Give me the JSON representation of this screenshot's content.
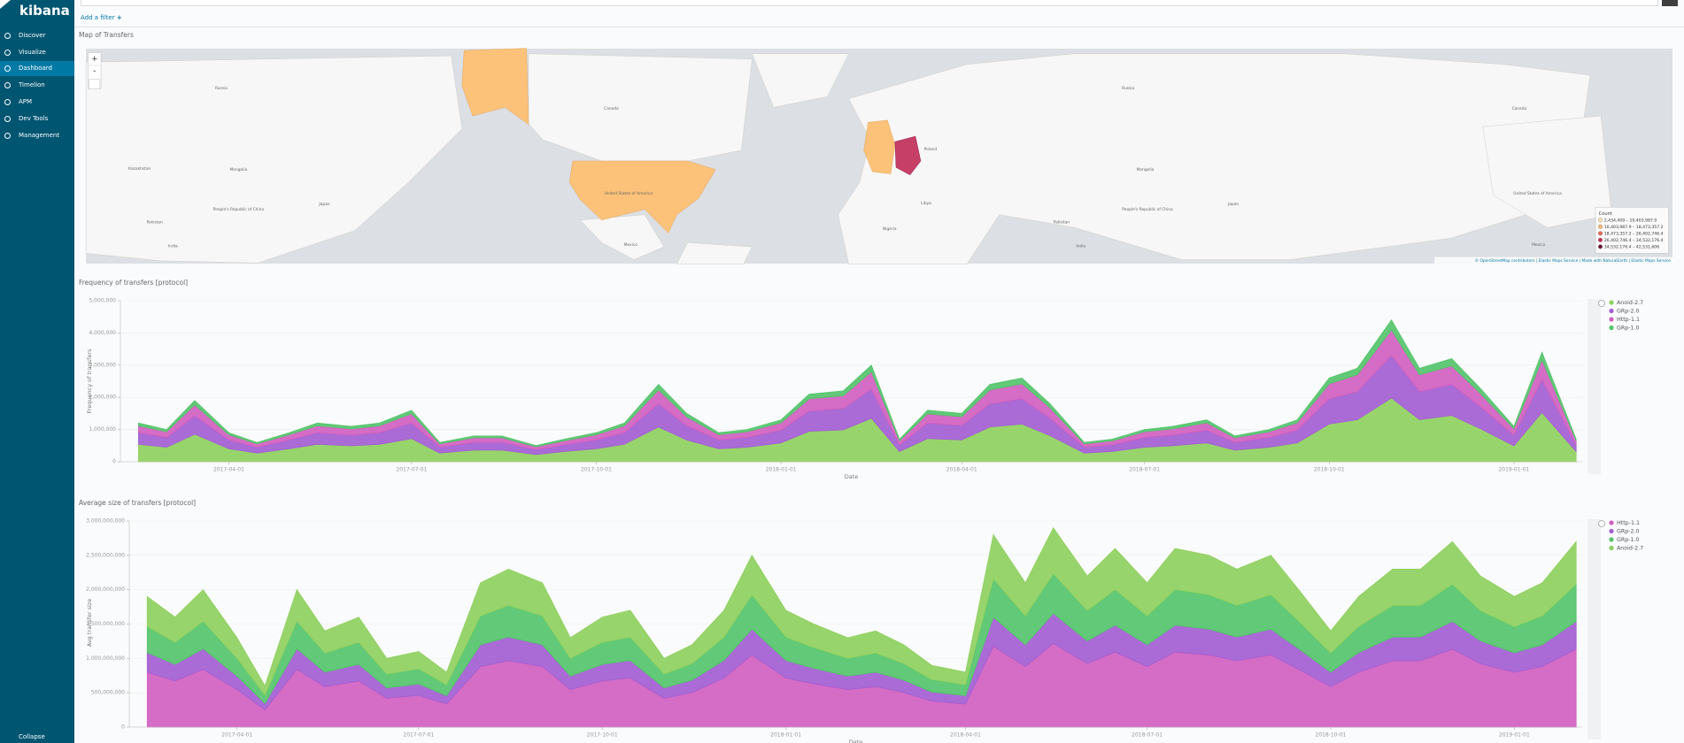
{
  "sidebar": {
    "brand": "kibana",
    "items": [
      "Discover",
      "Visualize",
      "Dashboard",
      "Timelion",
      "APM",
      "Dev Tools",
      "Management"
    ],
    "active": 2,
    "collapse": "Collapse"
  },
  "filter_bar": {
    "add_filter": "Add a filter"
  },
  "map_panel": {
    "title": "Map of Transfers",
    "zoom_in": "+",
    "zoom_out": "-",
    "labels": [
      {
        "text": "Russia",
        "x": 206,
        "y": 82
      },
      {
        "text": "Canada",
        "x": 569,
        "y": 101
      },
      {
        "text": "United States of America",
        "x": 585,
        "y": 180
      },
      {
        "text": "Mongolia",
        "x": 222,
        "y": 158
      },
      {
        "text": "Kazakhstan",
        "x": 130,
        "y": 157
      },
      {
        "text": "People's Republic of China",
        "x": 222,
        "y": 195
      },
      {
        "text": "Pakistan",
        "x": 144,
        "y": 207
      },
      {
        "text": "India",
        "x": 161,
        "y": 229
      },
      {
        "text": "Japan",
        "x": 302,
        "y": 190
      },
      {
        "text": "Mexico",
        "x": 587,
        "y": 228
      },
      {
        "text": "Poland",
        "x": 866,
        "y": 139
      },
      {
        "text": "Libya",
        "x": 862,
        "y": 189
      },
      {
        "text": "Nigeria",
        "x": 828,
        "y": 213
      },
      {
        "text": "Russia",
        "x": 1050,
        "y": 82
      },
      {
        "text": "Mongolia",
        "x": 1066,
        "y": 158
      },
      {
        "text": "People's Republic of China",
        "x": 1068,
        "y": 195
      },
      {
        "text": "Pakistan",
        "x": 988,
        "y": 207
      },
      {
        "text": "India",
        "x": 1006,
        "y": 229
      },
      {
        "text": "Japan",
        "x": 1148,
        "y": 190
      },
      {
        "text": "Canada",
        "x": 1414,
        "y": 101
      },
      {
        "text": "United States of America",
        "x": 1431,
        "y": 180
      },
      {
        "text": "Mexico",
        "x": 1432,
        "y": 228
      }
    ],
    "legend": {
      "title": "Count",
      "items": [
        {
          "label": "2,434,409 – 10,403,987.9",
          "color": "#fde3b1"
        },
        {
          "label": "10,403,987.9 – 18,473,357.2",
          "color": "#f9b46a"
        },
        {
          "label": "18,473,357.2 – 26,402,746.4",
          "color": "#e8664b"
        },
        {
          "label": "26,402,746.4 – 34,532,176.4",
          "color": "#c42a52"
        },
        {
          "label": "34,532,176.4 – 42,531,606",
          "color": "#6e1233"
        }
      ]
    },
    "attribution": "© OpenStreetMap contributors | Elastic Maps Service | Made with NaturalEarth | Elastic Maps Service"
  },
  "charts": [
    {
      "type": "area",
      "stacked": true,
      "title": "Frequency of transfers [protocol]",
      "x_label": "Date",
      "y_label": "Frequency of transfers",
      "x": [
        "2017-02-15",
        "2017-03-01",
        "2017-03-15",
        "2017-04-01",
        "2017-04-15",
        "2017-05-01",
        "2017-05-15",
        "2017-06-01",
        "2017-06-15",
        "2017-07-01",
        "2017-07-15",
        "2017-08-01",
        "2017-08-15",
        "2017-09-01",
        "2017-09-15",
        "2017-10-01",
        "2017-10-15",
        "2017-11-01",
        "2017-11-15",
        "2017-12-01",
        "2017-12-15",
        "2018-01-01",
        "2018-01-15",
        "2018-02-01",
        "2018-02-15",
        "2018-03-01",
        "2018-03-15",
        "2018-04-01",
        "2018-04-15",
        "2018-05-01",
        "2018-05-15",
        "2018-06-01",
        "2018-06-15",
        "2018-07-01",
        "2018-07-15",
        "2018-08-01",
        "2018-08-15",
        "2018-09-01",
        "2018-09-15",
        "2018-10-01",
        "2018-10-15",
        "2018-11-01",
        "2018-11-15",
        "2018-12-01",
        "2018-12-15",
        "2019-01-01",
        "2019-01-15",
        "2019-02-01"
      ],
      "xlim": [
        "2017-02-06",
        "2019-02-04"
      ],
      "xticks": [
        "2017-04-01",
        "2017-07-01",
        "2017-10-01",
        "2018-01-01",
        "2018-04-01",
        "2018-07-01",
        "2018-10-01",
        "2019-01-01"
      ],
      "ylim": [
        0,
        5000000
      ],
      "yticks": [
        0,
        {
          "value": 1000000,
          "label": "1,000,000"
        },
        {
          "value": 2000000,
          "label": "2,000,000"
        },
        {
          "value": 3000000,
          "label": "3,000,000"
        },
        {
          "value": 4000000,
          "label": "4,000,000"
        },
        {
          "value": 5000000,
          "label": "5,000,000"
        }
      ],
      "series": [
        {
          "name": "Anoid-2.7",
          "color": "#8fd05f",
          "values": [
            540000,
            450000,
            855000,
            405000,
            270000,
            405000,
            540000,
            495000,
            540000,
            720000,
            270000,
            360000,
            360000,
            225000,
            315000,
            405000,
            540000,
            1080000,
            675000,
            405000,
            450000,
            585000,
            945000,
            990000,
            1350000,
            315000,
            720000,
            675000,
            1080000,
            1170000,
            810000,
            270000,
            315000,
            450000,
            495000,
            585000,
            360000,
            450000,
            585000,
            1170000,
            1305000,
            1980000,
            1305000,
            1440000,
            1035000,
            495000,
            1530000,
            315000
          ]
        },
        {
          "name": "GRp-2.0",
          "color": "#a35ed3",
          "values": [
            360000,
            300000,
            570000,
            270000,
            180000,
            270000,
            360000,
            330000,
            360000,
            480000,
            180000,
            240000,
            240000,
            150000,
            210000,
            270000,
            360000,
            720000,
            450000,
            270000,
            300000,
            390000,
            630000,
            660000,
            900000,
            210000,
            480000,
            450000,
            720000,
            780000,
            540000,
            180000,
            210000,
            300000,
            330000,
            390000,
            240000,
            300000,
            390000,
            780000,
            870000,
            1320000,
            870000,
            960000,
            690000,
            330000,
            1020000,
            210000
          ]
        },
        {
          "name": "Http-1.1",
          "color": "#d15fc0",
          "values": [
            216000,
            180000,
            342000,
            162000,
            108000,
            162000,
            216000,
            198000,
            216000,
            288000,
            108000,
            144000,
            144000,
            90000,
            126000,
            162000,
            216000,
            432000,
            270000,
            162000,
            180000,
            234000,
            378000,
            396000,
            540000,
            126000,
            288000,
            270000,
            432000,
            468000,
            324000,
            108000,
            126000,
            180000,
            198000,
            234000,
            144000,
            180000,
            234000,
            468000,
            522000,
            792000,
            522000,
            576000,
            414000,
            198000,
            612000,
            126000
          ]
        },
        {
          "name": "GRp-1.0",
          "color": "#54c46b",
          "values": [
            84000,
            70000,
            133000,
            63000,
            42000,
            63000,
            84000,
            77000,
            84000,
            112000,
            42000,
            56000,
            56000,
            35000,
            49000,
            63000,
            84000,
            168000,
            105000,
            63000,
            70000,
            91000,
            147000,
            154000,
            210000,
            49000,
            112000,
            105000,
            168000,
            182000,
            126000,
            42000,
            49000,
            70000,
            77000,
            91000,
            56000,
            70000,
            91000,
            182000,
            203000,
            308000,
            203000,
            224000,
            161000,
            77000,
            238000,
            49000
          ]
        }
      ]
    },
    {
      "type": "area",
      "stacked": true,
      "title": "Average size of transfers [protocol]",
      "x_label": "Date",
      "y_label": "Avg transfer size",
      "x": [
        "2017-02-15",
        "2017-03-01",
        "2017-03-15",
        "2017-04-01",
        "2017-04-15",
        "2017-05-01",
        "2017-05-15",
        "2017-06-01",
        "2017-06-15",
        "2017-07-01",
        "2017-07-15",
        "2017-08-01",
        "2017-08-15",
        "2017-09-01",
        "2017-09-15",
        "2017-10-01",
        "2017-10-15",
        "2017-11-01",
        "2017-11-15",
        "2017-12-01",
        "2017-12-15",
        "2018-01-01",
        "2018-01-15",
        "2018-02-01",
        "2018-02-15",
        "2018-03-01",
        "2018-03-15",
        "2018-04-01",
        "2018-04-15",
        "2018-05-01",
        "2018-05-15",
        "2018-06-01",
        "2018-06-15",
        "2018-07-01",
        "2018-07-15",
        "2018-08-01",
        "2018-08-15",
        "2018-09-01",
        "2018-09-15",
        "2018-10-01",
        "2018-10-15",
        "2018-11-01",
        "2018-11-15",
        "2018-12-01",
        "2018-12-15",
        "2019-01-01",
        "2019-01-15",
        "2019-02-01"
      ],
      "xlim": [
        "2017-02-06",
        "2019-02-04"
      ],
      "xticks": [
        "2017-04-01",
        "2017-07-01",
        "2017-10-01",
        "2018-01-01",
        "2018-04-01",
        "2018-07-01",
        "2018-10-01",
        "2019-01-01"
      ],
      "ylim": [
        0,
        3000000000
      ],
      "yticks": [
        0,
        {
          "value": 500000000,
          "label": "500,000,000"
        },
        {
          "value": 1000000000,
          "label": "1,000,000,000"
        },
        {
          "value": 1500000000,
          "label": "1,500,000,000"
        },
        {
          "value": 2000000000,
          "label": "2,000,000,000"
        },
        {
          "value": 2500000000,
          "label": "2,500,000,000"
        },
        {
          "value": 3000000000,
          "label": "3,000,000,000"
        }
      ],
      "series": [
        {
          "name": "Http-1.1",
          "color": "#d15fc0",
          "values": [
            798000000,
            672000000,
            840000000,
            546000000,
            252000000,
            840000000,
            588000000,
            672000000,
            420000000,
            462000000,
            336000000,
            882000000,
            966000000,
            882000000,
            546000000,
            672000000,
            714000000,
            420000000,
            504000000,
            714000000,
            1050000000,
            714000000,
            630000000,
            546000000,
            588000000,
            504000000,
            378000000,
            336000000,
            1176000000,
            882000000,
            1218000000,
            924000000,
            1092000000,
            882000000,
            1092000000,
            1050000000,
            966000000,
            1050000000,
            840000000,
            588000000,
            798000000,
            966000000,
            966000000,
            1134000000,
            924000000,
            798000000,
            882000000,
            1134000000
          ]
        },
        {
          "name": "GRp-2.0",
          "color": "#a35ed3",
          "values": [
            285000000,
            240000000,
            300000000,
            195000000,
            90000000,
            300000000,
            210000000,
            240000000,
            150000000,
            165000000,
            120000000,
            315000000,
            345000000,
            315000000,
            195000000,
            240000000,
            255000000,
            150000000,
            180000000,
            255000000,
            375000000,
            255000000,
            225000000,
            195000000,
            210000000,
            180000000,
            135000000,
            120000000,
            420000000,
            315000000,
            435000000,
            330000000,
            390000000,
            315000000,
            390000000,
            375000000,
            345000000,
            375000000,
            300000000,
            210000000,
            285000000,
            345000000,
            345000000,
            405000000,
            330000000,
            285000000,
            315000000,
            405000000
          ]
        },
        {
          "name": "GRp-1.0",
          "color": "#54c46b",
          "values": [
            380000000,
            320000000,
            400000000,
            260000000,
            120000000,
            400000000,
            280000000,
            320000000,
            200000000,
            220000000,
            160000000,
            420000000,
            460000000,
            420000000,
            260000000,
            320000000,
            340000000,
            200000000,
            240000000,
            340000000,
            500000000,
            340000000,
            300000000,
            260000000,
            280000000,
            240000000,
            180000000,
            160000000,
            560000000,
            420000000,
            580000000,
            440000000,
            520000000,
            420000000,
            520000000,
            500000000,
            460000000,
            500000000,
            400000000,
            280000000,
            380000000,
            460000000,
            460000000,
            540000000,
            440000000,
            380000000,
            420000000,
            540000000
          ]
        },
        {
          "name": "Anoid-2.7",
          "color": "#8fd05f",
          "values": [
            437000000,
            368000000,
            460000000,
            299000000,
            138000000,
            460000000,
            322000000,
            368000000,
            230000000,
            253000000,
            184000000,
            483000000,
            529000000,
            483000000,
            299000000,
            368000000,
            391000000,
            230000000,
            276000000,
            391000000,
            575000000,
            391000000,
            345000000,
            299000000,
            322000000,
            276000000,
            207000000,
            184000000,
            644000000,
            483000000,
            667000000,
            506000000,
            598000000,
            483000000,
            598000000,
            575000000,
            529000000,
            575000000,
            460000000,
            322000000,
            437000000,
            529000000,
            529000000,
            621000000,
            506000000,
            437000000,
            483000000,
            621000000
          ]
        }
      ]
    }
  ]
}
